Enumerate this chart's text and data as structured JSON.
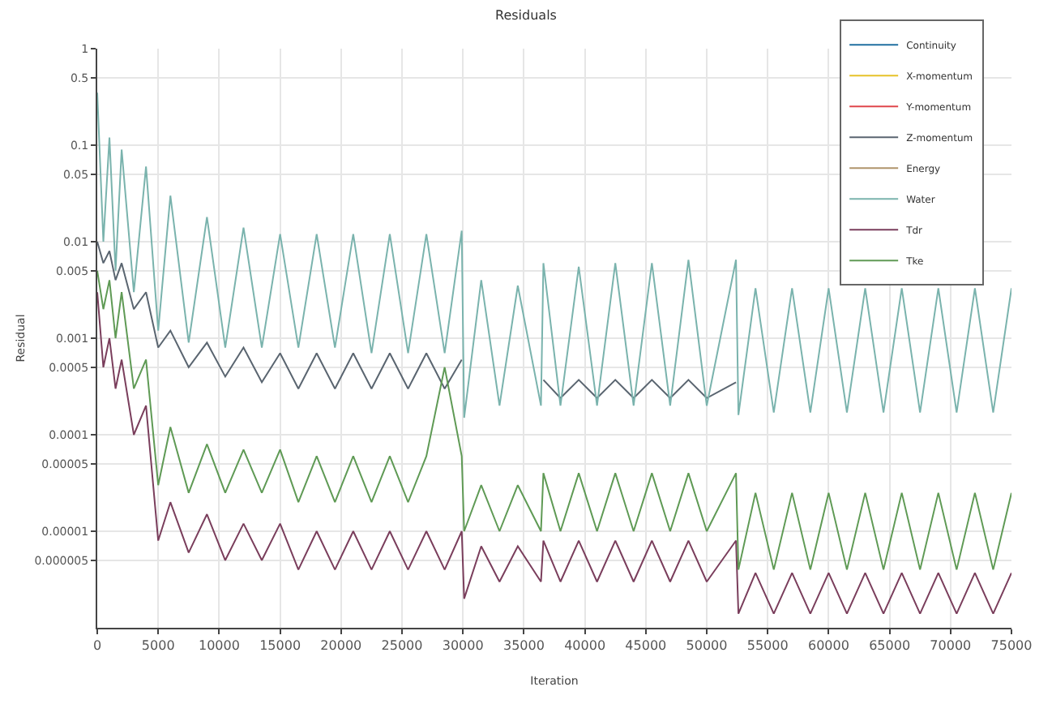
{
  "chart_data": {
    "type": "line",
    "title": "Residuals",
    "xlabel": "Iteration",
    "ylabel": "Residual",
    "log": "y",
    "grid": true,
    "legend": "top right",
    "line_style": "solid",
    "marker": "none",
    "xlim": [
      0,
      75000
    ],
    "xticks": [
      0,
      5000,
      10000,
      15000,
      20000,
      25000,
      30000,
      35000,
      40000,
      45000,
      50000,
      55000,
      60000,
      65000,
      70000,
      75000
    ],
    "ylim": [
      1e-06,
      1
    ],
    "yticks": [
      {
        "value": 1,
        "label": "1"
      },
      {
        "value": 0.5,
        "label": "0.5"
      },
      {
        "value": 0.1,
        "label": "0.1"
      },
      {
        "value": 0.05,
        "label": "0.05"
      },
      {
        "value": 0.01,
        "label": "0.01"
      },
      {
        "value": 0.005,
        "label": "0.005"
      },
      {
        "value": 0.001,
        "label": "0.001"
      },
      {
        "value": 0.0005,
        "label": "0.0005"
      },
      {
        "value": 0.0001,
        "label": "0.0001"
      },
      {
        "value": 5e-05,
        "label": "0.00005"
      },
      {
        "value": 1e-05,
        "label": "0.00001"
      },
      {
        "value": 5e-06,
        "label": "0.000005"
      }
    ],
    "x": [
      0,
      500,
      1000,
      1500,
      2000,
      3000,
      4000,
      5000,
      6000,
      7500,
      9000,
      10500,
      12000,
      13500,
      15000,
      16500,
      18000,
      19500,
      21000,
      22500,
      24000,
      25500,
      27000,
      28500,
      29900,
      30100,
      31500,
      33000,
      34500,
      36400,
      36600,
      38000,
      39500,
      41000,
      42500,
      44000,
      45500,
      47000,
      48500,
      50000,
      52400,
      52600,
      54000,
      55500,
      57000,
      58500,
      60000,
      61500,
      63000,
      64500,
      66000,
      67500,
      69000,
      70500,
      72000,
      73500,
      75000
    ],
    "series": [
      {
        "name": "Continuity",
        "color": "#1f6fa0",
        "values": [
          null,
          null,
          null,
          null,
          null,
          null,
          null,
          null,
          null,
          null,
          null,
          null,
          null,
          null,
          null,
          null,
          null,
          null,
          null,
          null,
          null,
          null,
          null,
          null,
          null,
          null,
          null,
          null,
          null,
          null,
          null,
          null,
          null,
          null,
          null,
          null,
          null,
          null,
          null,
          null,
          null,
          null,
          null,
          null,
          null,
          null,
          null,
          null,
          null,
          null,
          null,
          null,
          null,
          null,
          null,
          null,
          null
        ]
      },
      {
        "name": "X-momentum",
        "color": "#e6c229",
        "values": [
          null,
          null,
          null,
          null,
          null,
          null,
          null,
          null,
          null,
          null,
          null,
          null,
          null,
          null,
          null,
          null,
          null,
          null,
          null,
          null,
          null,
          null,
          null,
          null,
          null,
          null,
          null,
          null,
          null,
          null,
          null,
          null,
          null,
          null,
          null,
          null,
          null,
          null,
          null,
          null,
          null,
          null,
          null,
          null,
          null,
          null,
          null,
          null,
          null,
          null,
          null,
          null,
          null,
          null,
          null,
          null,
          null
        ]
      },
      {
        "name": "Y-momentum",
        "color": "#e0474c",
        "values": [
          null,
          null,
          null,
          null,
          null,
          null,
          null,
          null,
          null,
          null,
          null,
          null,
          null,
          null,
          null,
          null,
          null,
          null,
          null,
          null,
          null,
          null,
          null,
          null,
          null,
          null,
          null,
          null,
          null,
          null,
          null,
          null,
          null,
          null,
          null,
          null,
          null,
          null,
          null,
          null,
          null,
          null,
          null,
          null,
          null,
          null,
          null,
          null,
          null,
          null,
          null,
          null,
          null,
          null,
          null,
          null,
          null
        ]
      },
      {
        "name": "Z-momentum",
        "color": "#5a6570",
        "values": [
          0.01,
          0.006,
          0.008,
          0.004,
          0.006,
          0.002,
          0.003,
          0.0008,
          0.0012,
          0.0005,
          0.0009,
          0.0004,
          0.0008,
          0.00035,
          0.0007,
          0.0003,
          0.0007,
          0.0003,
          0.0007,
          0.0003,
          0.0007,
          0.0003,
          0.0007,
          0.0003,
          0.0006,
          null,
          null,
          null,
          null,
          null,
          0.00037,
          0.00024,
          0.00037,
          0.00024,
          0.00037,
          0.00024,
          0.00037,
          0.00024,
          0.00037,
          0.00024,
          0.00035,
          null,
          null,
          null,
          null,
          null,
          null,
          null,
          null,
          null,
          null,
          null,
          null,
          null,
          null,
          null,
          null
        ]
      },
      {
        "name": "Energy",
        "color": "#b0946b",
        "values": [
          null,
          null,
          null,
          null,
          null,
          null,
          null,
          null,
          null,
          null,
          null,
          null,
          null,
          null,
          null,
          null,
          null,
          null,
          null,
          null,
          null,
          null,
          null,
          null,
          null,
          null,
          null,
          null,
          null,
          null,
          null,
          null,
          null,
          null,
          null,
          null,
          null,
          null,
          null,
          null,
          null,
          null,
          null,
          null,
          null,
          null,
          null,
          null,
          null,
          null,
          null,
          null,
          null,
          null,
          null,
          null,
          null
        ]
      },
      {
        "name": "Water",
        "color": "#7ab3ad",
        "values": [
          0.35,
          0.01,
          0.12,
          0.005,
          0.09,
          0.003,
          0.06,
          0.0012,
          0.03,
          0.0009,
          0.018,
          0.0008,
          0.014,
          0.0008,
          0.012,
          0.0008,
          0.012,
          0.0008,
          0.012,
          0.0007,
          0.012,
          0.0007,
          0.012,
          0.0007,
          0.013,
          0.00015,
          0.004,
          0.0002,
          0.0035,
          0.0002,
          0.006,
          0.0002,
          0.0055,
          0.0002,
          0.006,
          0.0002,
          0.006,
          0.0002,
          0.0065,
          0.0002,
          0.0065,
          0.00016,
          0.0033,
          0.00017,
          0.0033,
          0.00017,
          0.0033,
          0.00017,
          0.0033,
          0.00017,
          0.0033,
          0.00017,
          0.0033,
          0.00017,
          0.0033,
          0.00017,
          0.0033
        ]
      },
      {
        "name": "Tdr",
        "color": "#7a3e5c",
        "values": [
          0.003,
          0.0005,
          0.001,
          0.0003,
          0.0006,
          0.0001,
          0.0002,
          8e-06,
          2e-05,
          6e-06,
          1.5e-05,
          5e-06,
          1.2e-05,
          5e-06,
          1.2e-05,
          4e-06,
          1e-05,
          4e-06,
          1e-05,
          4e-06,
          1e-05,
          4e-06,
          1e-05,
          4e-06,
          1e-05,
          2e-06,
          7e-06,
          3e-06,
          7e-06,
          3e-06,
          8e-06,
          3e-06,
          8e-06,
          3e-06,
          8e-06,
          3e-06,
          8e-06,
          3e-06,
          8e-06,
          3e-06,
          8e-06,
          1.4e-06,
          3.7e-06,
          1.4e-06,
          3.7e-06,
          1.4e-06,
          3.7e-06,
          1.4e-06,
          3.7e-06,
          1.4e-06,
          3.7e-06,
          1.4e-06,
          3.7e-06,
          1.4e-06,
          3.7e-06,
          1.4e-06,
          3.7e-06
        ]
      },
      {
        "name": "Tke",
        "color": "#5f9a55",
        "values": [
          0.005,
          0.002,
          0.004,
          0.001,
          0.003,
          0.0003,
          0.0006,
          3e-05,
          0.00012,
          2.5e-05,
          8e-05,
          2.5e-05,
          7e-05,
          2.5e-05,
          7e-05,
          2e-05,
          6e-05,
          2e-05,
          6e-05,
          2e-05,
          6e-05,
          2e-05,
          6e-05,
          0.0005,
          6e-05,
          1e-05,
          3e-05,
          1e-05,
          3e-05,
          1e-05,
          4e-05,
          1e-05,
          4e-05,
          1e-05,
          4e-05,
          1e-05,
          4e-05,
          1e-05,
          4e-05,
          1e-05,
          4e-05,
          4e-06,
          2.5e-05,
          4e-06,
          2.5e-05,
          4e-06,
          2.5e-05,
          4e-06,
          2.5e-05,
          4e-06,
          2.5e-05,
          4e-06,
          2.5e-05,
          4e-06,
          2.5e-05,
          4e-06,
          2.5e-05
        ]
      }
    ]
  }
}
